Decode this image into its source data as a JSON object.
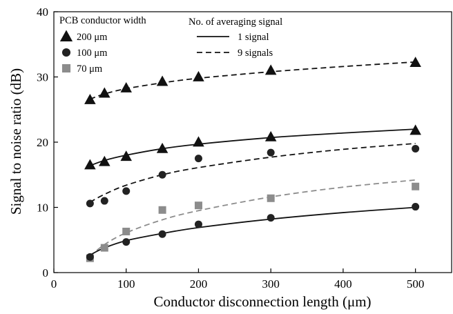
{
  "chart_data": {
    "type": "scatter",
    "title": "",
    "xlabel": "Conductor disconnection length (μm)",
    "ylabel": "Signal to noise ratio (dB)",
    "xlim": [
      0,
      550
    ],
    "ylim": [
      0,
      40
    ],
    "xticks": [
      0,
      100,
      200,
      300,
      400,
      500
    ],
    "yticks": [
      0,
      10,
      20,
      30,
      40
    ],
    "grid": false,
    "legend": {
      "placement": "top-left",
      "width_title": "PCB conductor width",
      "averaging_title": "No. of averaging signal",
      "widths": [
        {
          "label": "200 μm",
          "marker": "triangle",
          "color": "#111111"
        },
        {
          "label": "100 μm",
          "marker": "circle",
          "color": "#222222"
        },
        {
          "label": "70 μm",
          "marker": "square",
          "color": "#8c8c8c"
        }
      ],
      "line_styles": [
        {
          "label": "1 signal",
          "dash": "solid"
        },
        {
          "label": "9 signals",
          "dash": "dashed"
        }
      ]
    },
    "points": [
      {
        "name": "200 μm, 9 signals",
        "marker": "triangle",
        "color": "#111111",
        "x": [
          50,
          70,
          100,
          150,
          200,
          300,
          500
        ],
        "y": [
          26.5,
          27.5,
          28.3,
          29.3,
          30.0,
          31.0,
          32.2
        ]
      },
      {
        "name": "200 μm, 1 signal",
        "marker": "triangle",
        "color": "#111111",
        "x": [
          50,
          70,
          100,
          150,
          200,
          300,
          500
        ],
        "y": [
          16.5,
          17.0,
          17.8,
          19.0,
          20.0,
          20.8,
          21.8
        ]
      },
      {
        "name": "100 μm, 9 signals",
        "marker": "circle",
        "color": "#222222",
        "x": [
          50,
          70,
          100,
          150,
          200,
          300,
          500
        ],
        "y": [
          10.6,
          11.0,
          12.5,
          15.0,
          17.5,
          18.4,
          19.0
        ]
      },
      {
        "name": "70 μm, 9 signals",
        "marker": "square",
        "color": "#8c8c8c",
        "x": [
          50,
          70,
          100,
          150,
          200,
          300,
          500
        ],
        "y": [
          2.2,
          3.8,
          6.3,
          9.6,
          10.3,
          11.4,
          13.2
        ]
      },
      {
        "name": "100 μm, 1 signal",
        "marker": "circle",
        "color": "#222222",
        "x": [
          50,
          100,
          150,
          200,
          300,
          500
        ],
        "y": [
          2.4,
          4.7,
          5.9,
          7.4,
          8.4,
          10.1
        ]
      }
    ],
    "curves": [
      {
        "name": "200 μm, 9 signals fit",
        "color": "#111111",
        "dash": "dashed",
        "x": [
          50,
          70,
          100,
          150,
          200,
          300,
          400,
          500
        ],
        "y": [
          26.6,
          27.4,
          28.2,
          29.1,
          29.8,
          30.8,
          31.6,
          32.3
        ]
      },
      {
        "name": "200 μm, 1 signal fit",
        "color": "#111111",
        "dash": "solid",
        "x": [
          50,
          70,
          100,
          150,
          200,
          300,
          400,
          500
        ],
        "y": [
          16.4,
          17.2,
          18.0,
          19.0,
          19.7,
          20.7,
          21.4,
          22.0
        ]
      },
      {
        "name": "100 μm, 9 signals fit",
        "color": "#111111",
        "dash": "dashed",
        "x": [
          50,
          70,
          100,
          150,
          200,
          300,
          400,
          500
        ],
        "y": [
          10.8,
          12.0,
          13.4,
          15.0,
          16.1,
          17.7,
          18.9,
          19.8
        ]
      },
      {
        "name": "70 μm, 9 signals fit",
        "color": "#8c8c8c",
        "dash": "dashed",
        "x": [
          50,
          70,
          100,
          150,
          200,
          300,
          400,
          500
        ],
        "y": [
          2.5,
          4.3,
          6.1,
          8.1,
          9.5,
          11.6,
          13.1,
          14.2
        ]
      },
      {
        "name": "100 μm, 1 signal fit",
        "color": "#111111",
        "dash": "solid",
        "x": [
          50,
          70,
          100,
          150,
          200,
          300,
          400,
          500
        ],
        "y": [
          2.7,
          3.8,
          4.9,
          6.0,
          6.9,
          8.2,
          9.2,
          10.0
        ]
      }
    ]
  }
}
